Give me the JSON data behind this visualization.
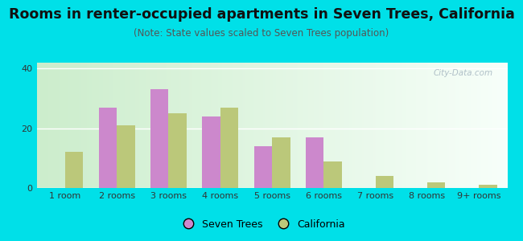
{
  "categories": [
    "1 room",
    "2 rooms",
    "3 rooms",
    "4 rooms",
    "5 rooms",
    "6 rooms",
    "7 rooms",
    "8 rooms",
    "9+ rooms"
  ],
  "seven_trees": [
    0,
    27,
    33,
    24,
    14,
    17,
    0,
    0,
    0
  ],
  "california": [
    12,
    21,
    25,
    27,
    17,
    9,
    4,
    2,
    1
  ],
  "seven_trees_color": "#cc88cc",
  "california_color": "#bbc87a",
  "title": "Rooms in renter-occupied apartments in Seven Trees, California",
  "subtitle": "(Note: State values scaled to Seven Trees population)",
  "title_fontsize": 12.5,
  "subtitle_fontsize": 8.5,
  "ylim": [
    0,
    42
  ],
  "yticks": [
    0,
    20,
    40
  ],
  "bar_width": 0.35,
  "legend_seven_trees": "Seven Trees",
  "legend_california": "California",
  "background_outer": "#00e0e8",
  "grid_color": "#ffffff",
  "tick_fontsize": 8,
  "watermark": "City-Data.com"
}
